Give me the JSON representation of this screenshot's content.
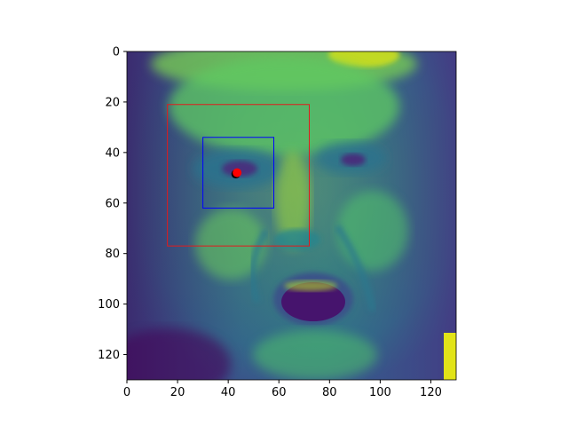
{
  "figure": {
    "image_description": "False-color (viridis) grayscale face image, mouth open, with overlaid bounding boxes and eye markers",
    "image_extent": {
      "x": [
        0,
        130
      ],
      "y": [
        0,
        130
      ]
    },
    "x_ticks": [
      0,
      20,
      40,
      60,
      80,
      100,
      120
    ],
    "y_ticks": [
      0,
      20,
      40,
      60,
      80,
      100,
      120
    ],
    "colormap": "viridis",
    "colors": {
      "outer_box": "#e31a1c",
      "inner_box": "#0000ff",
      "marker_black": "#000000",
      "marker_red": "#ff0000",
      "axes": "#000000"
    }
  },
  "annotations": {
    "outer_box": {
      "x0": 16,
      "y0": 21,
      "x1": 72,
      "y1": 77
    },
    "inner_box": {
      "x0": 30,
      "y0": 34,
      "x1": 58,
      "y1": 62
    },
    "markers": [
      {
        "name": "landmark-black",
        "x": 43,
        "y": 48.5
      },
      {
        "name": "landmark-red",
        "x": 43.5,
        "y": 48
      }
    ]
  }
}
